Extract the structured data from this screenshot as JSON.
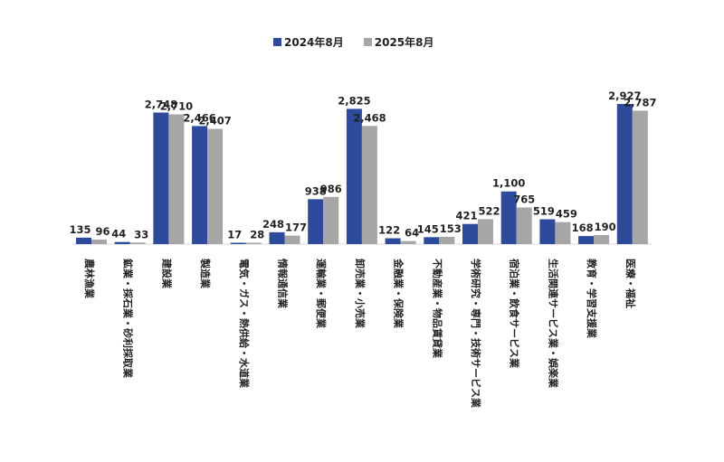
{
  "chart_data": {
    "type": "bar",
    "categories": [
      "農林漁業",
      "鉱業・採石業・砂利採取業",
      "建設業",
      "製造業",
      "電気・ガス・熱供給・水道業",
      "情報通信業",
      "運輸業・郵便業",
      "卸売業・小売業",
      "金融業・保険業",
      "不動産業・物品賃貸業",
      "学術研究・専門・技術サービス業",
      "宿泊業・飲食サービス業",
      "生活関連サービス業・娯楽業",
      "教育・学習支援業",
      "医療・福祉"
    ],
    "series": [
      {
        "name": "2024年8月",
        "color": "#2E4A9A",
        "values": [
          135,
          44,
          2748,
          2466,
          17,
          248,
          938,
          2825,
          122,
          145,
          421,
          1100,
          519,
          168,
          2927
        ],
        "labels": [
          "135",
          "44",
          "2,748",
          "2,466",
          "17",
          "248",
          "938",
          "2,825",
          "122",
          "145",
          "421",
          "1,100",
          "519",
          "168",
          "2,927"
        ]
      },
      {
        "name": "2025年8月",
        "color": "#A6A6A6",
        "values": [
          96,
          33,
          2710,
          2407,
          28,
          177,
          986,
          2468,
          64,
          153,
          522,
          765,
          459,
          190,
          2787
        ],
        "labels": [
          "96",
          "33",
          "2,710",
          "2,407",
          "28",
          "177",
          "986",
          "2,468",
          "64",
          "153",
          "522",
          "765",
          "459",
          "190",
          "2,787"
        ]
      }
    ],
    "ylim": [
      0,
      2927
    ],
    "legend_position": "top-center",
    "grid": false
  }
}
